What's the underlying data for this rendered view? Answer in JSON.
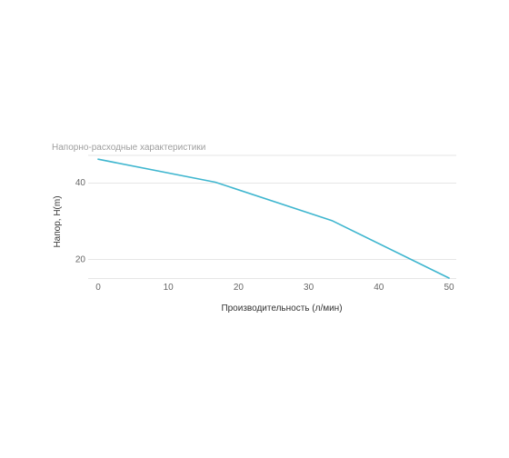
{
  "chart_data": {
    "type": "line",
    "title": "Напорно-расходные характеристики",
    "xlabel": "Производительность (л/мин)",
    "ylabel": "Напор, H(m)",
    "xlim": [
      0,
      50
    ],
    "ylim": [
      15,
      47
    ],
    "x_ticks": [
      "0",
      "10",
      "20",
      "30",
      "40",
      "50"
    ],
    "y_ticks": [
      "20",
      "40"
    ],
    "grid": true,
    "legend": "none",
    "series": [
      {
        "color": "#3fb6cf",
        "x": [
          0,
          16.7,
          33.3,
          50
        ],
        "y": [
          46,
          40,
          30,
          15
        ]
      }
    ]
  }
}
